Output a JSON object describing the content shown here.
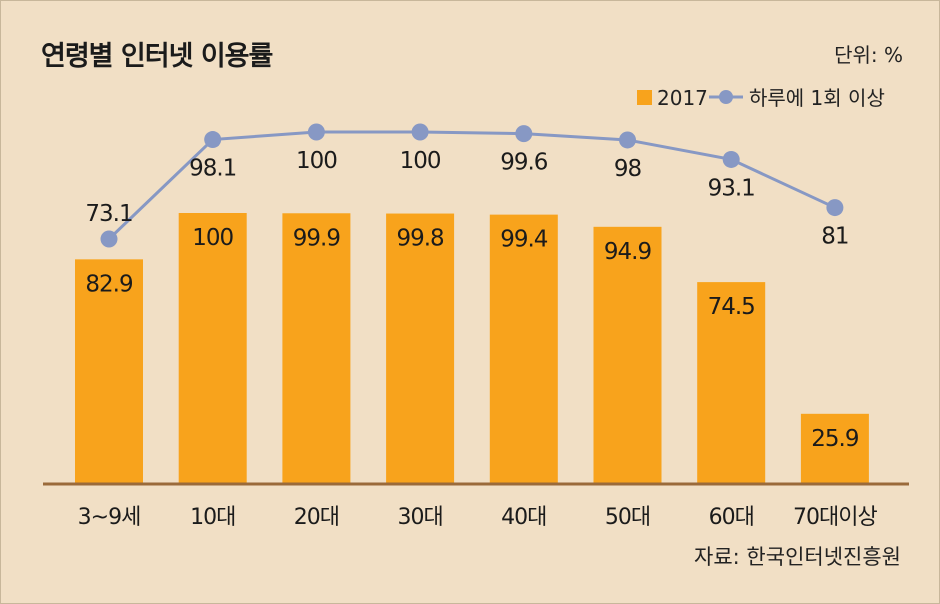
{
  "header": {
    "title": "연령별 인터넷 이용률",
    "unit": "단위: %"
  },
  "footer": {
    "source": "자료: 한국인터넷진흥원"
  },
  "colors": {
    "background": "#f1dfc5",
    "bar": "#f8a31c",
    "line": "#8798c4",
    "axis": "#9a6a3a",
    "text": "#1b1b1b"
  },
  "chart_data": {
    "type": "bar+line",
    "categories": [
      "3~9세",
      "10대",
      "20대",
      "30대",
      "40대",
      "50대",
      "60대",
      "70대이상"
    ],
    "series": [
      {
        "name": "2017",
        "type": "bar",
        "values": [
          82.9,
          100,
          99.9,
          99.8,
          99.4,
          94.9,
          74.5,
          25.9
        ]
      },
      {
        "name": "하루에 1회 이상",
        "type": "line",
        "values": [
          73.1,
          98.1,
          100,
          100,
          99.6,
          98,
          93.1,
          81
        ]
      }
    ],
    "ylim": [
      0,
      100
    ],
    "legend_position": "top-right",
    "grid": false
  }
}
